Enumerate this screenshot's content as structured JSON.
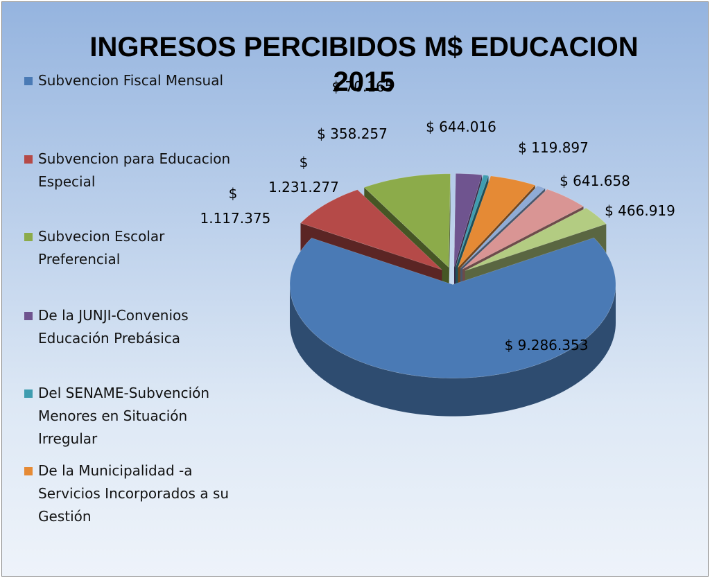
{
  "chart_data": {
    "type": "pie",
    "title": "INGRESOS PERCIBIDOS M$ EDUCACION 2015",
    "categories": [
      "Subvencion Fiscal Mensual",
      "Subvencion para Educacion Especial",
      "Subvecion Escolar Preferencial",
      "De la JUNJI-Convenios Educación Prebásica",
      "Del SENAME-Subvención Menores en Situación Irregular",
      "De la Municipalidad -a Servicios Incorporados a su Gestión",
      null,
      null,
      null
    ],
    "values": [
      9286353,
      1117375,
      1231277,
      358257,
      70165,
      644016,
      119897,
      641658,
      466919
    ],
    "value_labels": [
      "$ 9.286.353",
      "$ 1.117.375",
      "$ 1.231.277",
      "$ 358.257",
      "$ 70.165",
      "$ 644.016",
      "$ 119.897",
      "$ 641.658",
      "$ 466.919"
    ],
    "colors": [
      "#4a7ab5",
      "#b54a48",
      "#8cab4a",
      "#6f548f",
      "#3f9db0",
      "#e58a35",
      "#8fabd6",
      "#d99594",
      "#b3cc82"
    ]
  }
}
